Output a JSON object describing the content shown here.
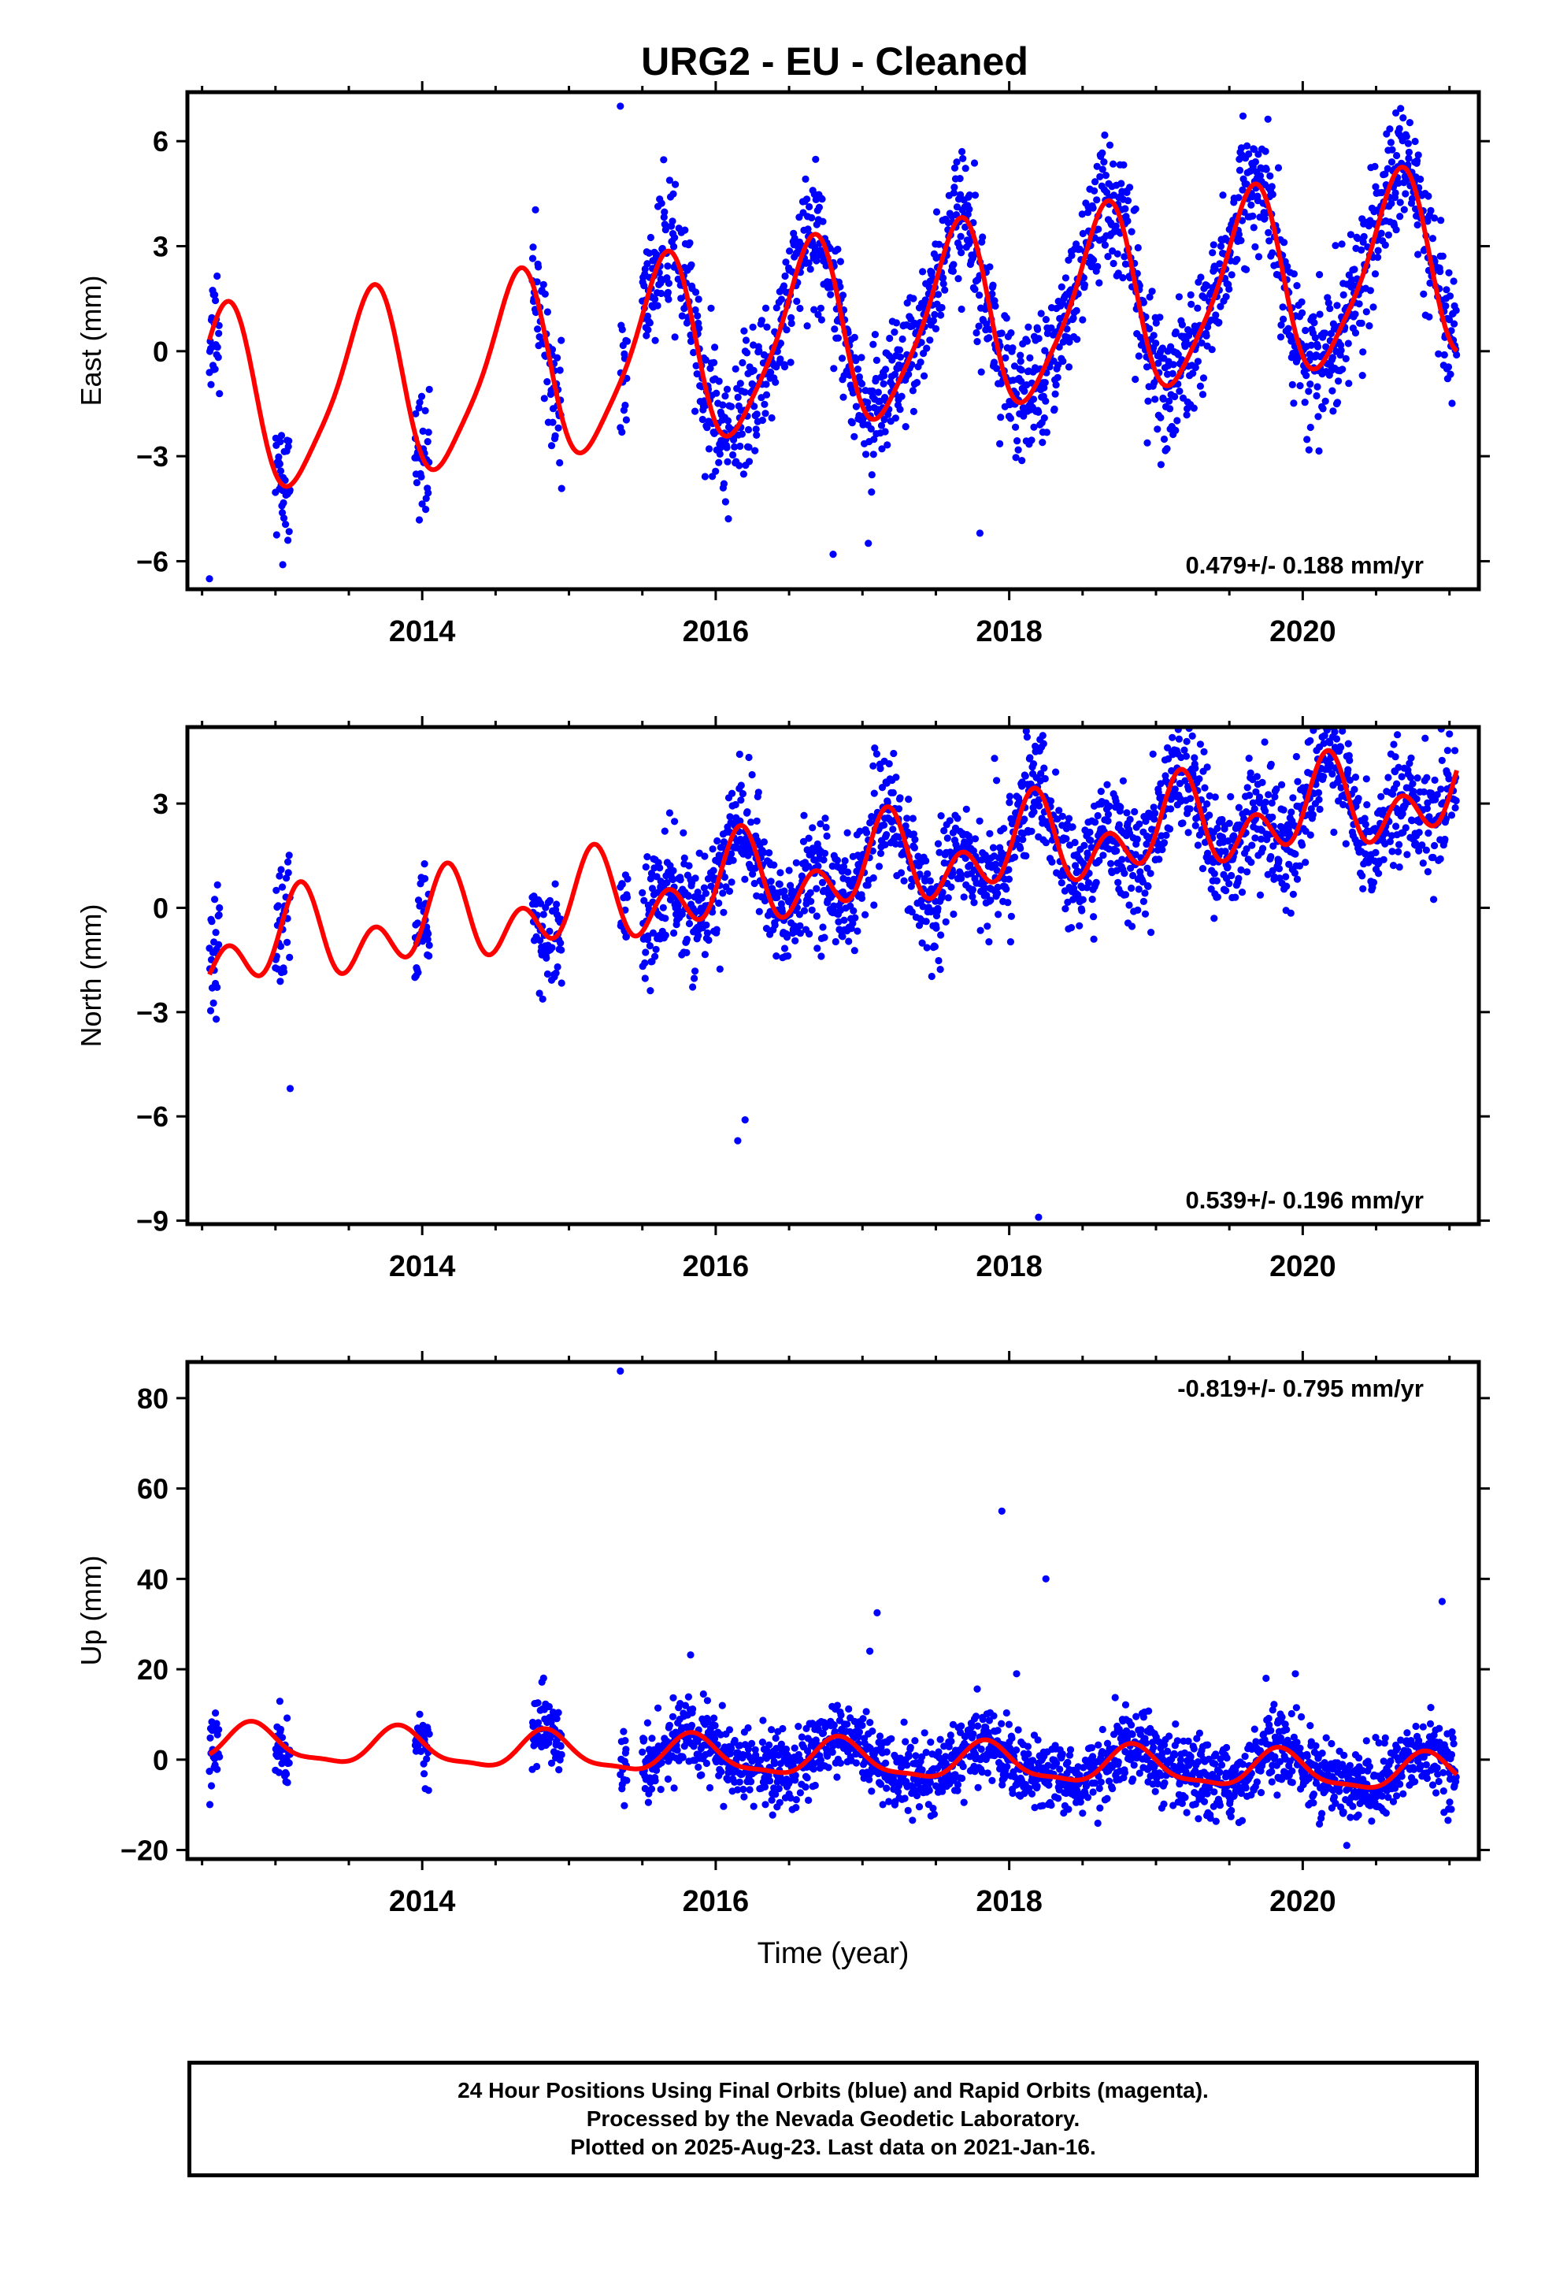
{
  "chart_data": {
    "type": "scatter",
    "title": "URG2  - EU - Cleaned",
    "xlabel": "Time (year)",
    "xlim": [
      2012.4,
      2021.2
    ],
    "xticks": [
      2014,
      2016,
      2018,
      2020
    ],
    "colors": {
      "data": "#0000ff",
      "model": "#ff0000",
      "frame": "#000000"
    },
    "panels": [
      {
        "component": "east",
        "ylabel": "East (mm)",
        "ylim": [
          -6.8,
          7.4
        ],
        "yticks": [
          6,
          3,
          0,
          -3,
          -6
        ],
        "rate": "0.479+/- 0.188 mm/yr",
        "rate_position": "bottom-right",
        "model": {
          "offset": -1.6,
          "rate": 0.479,
          "amp1": 2.6,
          "phase1": 0.39,
          "amp2": 0.5,
          "phase2": 0.1
        },
        "noise": 0.9,
        "outliers": [
          [
            2015.35,
            7.0
          ],
          [
            2013.05,
            -6.1
          ],
          [
            2016.8,
            -5.8
          ],
          [
            2017.8,
            -5.2
          ],
          [
            2012.55,
            -6.5
          ]
        ]
      },
      {
        "component": "north",
        "ylabel": "North (mm)",
        "ylim": [
          -9.1,
          5.2
        ],
        "yticks": [
          3,
          0,
          -3,
          -6,
          -9
        ],
        "rate": "0.539+/- 0.196 mm/yr",
        "rate_position": "bottom-right",
        "model": {
          "offset": -1.3,
          "rate": 0.539,
          "amp1": 0.8,
          "phase1": 0.9,
          "amp2": 0.9,
          "phase2": 0.55
        },
        "noise": 0.8,
        "outliers": [
          [
            2016.15,
            -6.7
          ],
          [
            2016.2,
            -6.1
          ],
          [
            2018.2,
            -8.9
          ],
          [
            2017.9,
            4.3
          ],
          [
            2021.0,
            5.0
          ],
          [
            2013.1,
            -5.2
          ]
        ]
      },
      {
        "component": "up",
        "ylabel": "Up (mm)",
        "ylim": [
          -22,
          88
        ],
        "yticks": [
          80,
          60,
          40,
          20,
          0,
          -20
        ],
        "rate": "-0.819+/- 0.795 mm/yr",
        "rate_position": "top-right",
        "model": {
          "offset": 3.6,
          "rate": -0.819,
          "amp1": 4.0,
          "phase1": 0.6,
          "amp2": 1.2,
          "phase2": 0.2
        },
        "noise": 4.0,
        "outliers": [
          [
            2015.35,
            86
          ],
          [
            2017.95,
            55
          ],
          [
            2018.25,
            40
          ],
          [
            2017.1,
            32.5
          ],
          [
            2017.05,
            24
          ],
          [
            2018.05,
            19
          ],
          [
            2020.95,
            35
          ],
          [
            2019.95,
            19
          ],
          [
            2019.75,
            18
          ]
        ]
      }
    ],
    "segments": [
      [
        2012.55,
        2012.62
      ],
      [
        2013.0,
        2013.1
      ],
      [
        2013.95,
        2014.05
      ],
      [
        2014.75,
        2014.95
      ],
      [
        2015.35,
        2015.4
      ],
      [
        2015.5,
        2021.05
      ]
    ]
  },
  "footer": {
    "line1": "24 Hour Positions Using Final Orbits (blue) and Rapid Orbits (magenta).",
    "line2": "Processed by the Nevada Geodetic Laboratory.",
    "line3": "Plotted on 2025-Aug-23. Last data on 2021-Jan-16."
  }
}
